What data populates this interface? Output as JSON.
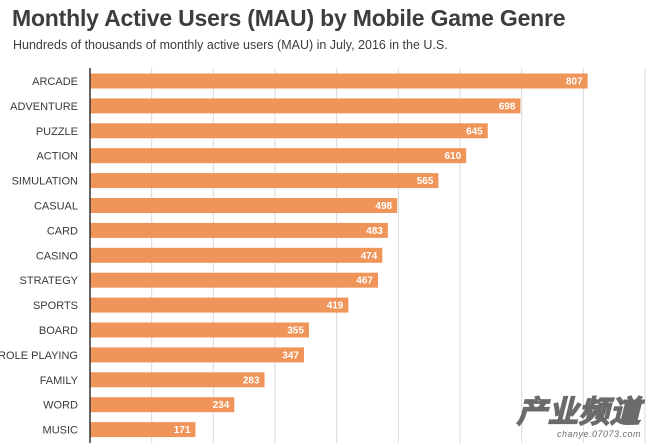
{
  "chart_data": {
    "type": "bar",
    "orientation": "horizontal",
    "title": "Monthly Active Users (MAU) by Mobile Game Genre",
    "subtitle": "Hundreds of thousands of monthly active users (MAU) in July, 2016 in the U.S.",
    "categories": [
      "ARCADE",
      "ADVENTURE",
      "PUZZLE",
      "ACTION",
      "SIMULATION",
      "CASUAL",
      "CARD",
      "CASINO",
      "STRATEGY",
      "SPORTS",
      "BOARD",
      "ROLE PLAYING",
      "FAMILY",
      "WORD",
      "MUSIC"
    ],
    "values": [
      807,
      698,
      645,
      610,
      565,
      498,
      483,
      474,
      467,
      419,
      355,
      347,
      283,
      234,
      171
    ],
    "xlim": [
      0,
      900
    ],
    "grid": true,
    "bar_color": "#f0955a",
    "grid_color": "#d9d9d9",
    "axis_color": "#333333"
  },
  "watermark": {
    "main": "产业频道",
    "url": "chanye.07073.com"
  }
}
